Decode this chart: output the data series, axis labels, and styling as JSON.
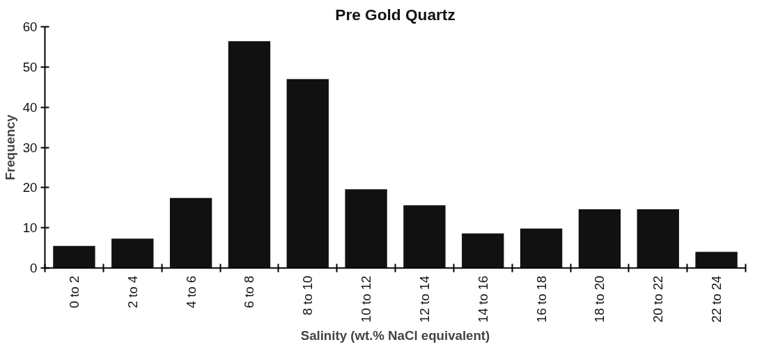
{
  "chart_data": {
    "type": "bar",
    "title": "Pre Gold Quartz",
    "xlabel": "Salinity (wt.% NaCl equivalent)",
    "ylabel": "Frequency",
    "categories": [
      "0 to 2",
      "2 to 4",
      "4 to 6",
      "6 to 8",
      "8 to 10",
      "10 to 12",
      "12 to 14",
      "14 to 16",
      "16 to 18",
      "18 to 20",
      "20 to 22",
      "22 to 24"
    ],
    "values": [
      5.5,
      7.3,
      17.4,
      56.4,
      47,
      19.6,
      15.6,
      8.6,
      9.8,
      14.6,
      14.6,
      4
    ],
    "color": "#111111",
    "ylim": [
      0,
      60
    ],
    "yticks": [
      0,
      10,
      20,
      30,
      40,
      50,
      60
    ],
    "grid": false
  }
}
